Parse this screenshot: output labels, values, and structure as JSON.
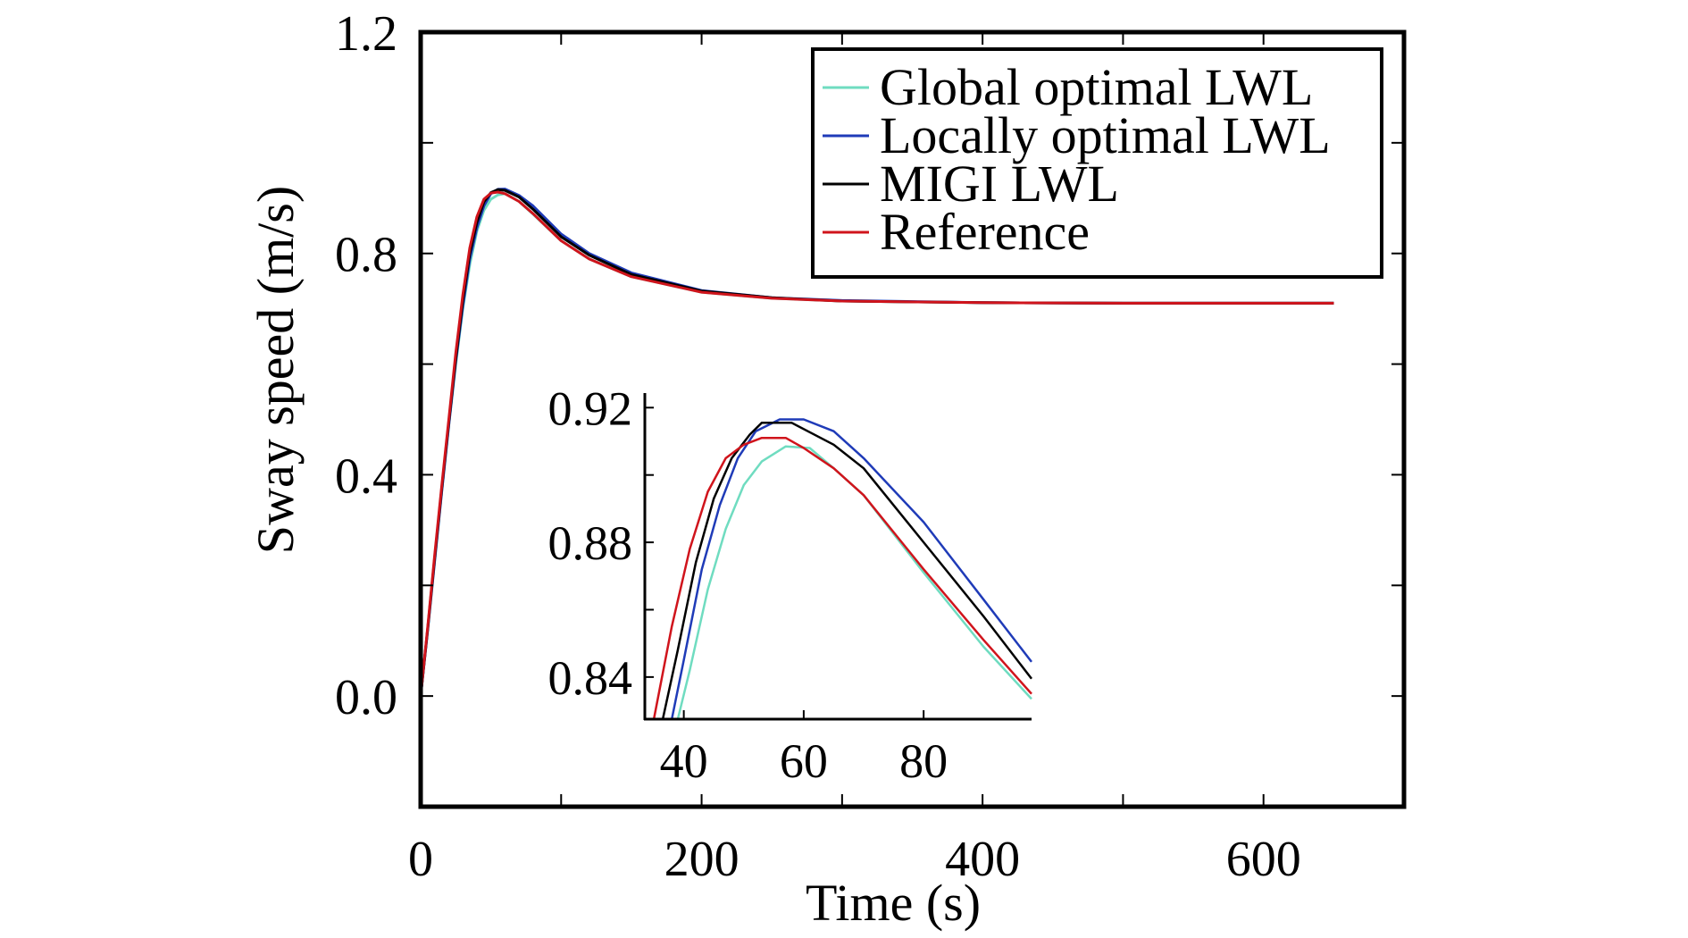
{
  "chart_data": {
    "type": "line",
    "title": "",
    "xlabel": "Time (s)",
    "ylabel": "Sway speed (m/s)",
    "xlim": [
      0,
      700
    ],
    "ylim": [
      -0.2,
      1.2
    ],
    "xticks": [
      0,
      100,
      200,
      300,
      400,
      500,
      600,
      700
    ],
    "xtick_labels": [
      "0",
      "",
      "200",
      "",
      "400",
      "",
      "600",
      ""
    ],
    "yticks": [
      -0.2,
      0.0,
      0.2,
      0.4,
      0.6,
      0.8,
      1.0,
      1.2
    ],
    "ytick_labels": [
      "",
      "0.0",
      "",
      "0.4",
      "",
      "0.8",
      "",
      "1.2"
    ],
    "grid": false,
    "legend_position": "top-right",
    "series": [
      {
        "name": "Global optimal LWL",
        "color": "#6fdcc0",
        "points": [
          [
            0,
            0
          ],
          [
            5,
            0.12
          ],
          [
            10,
            0.245
          ],
          [
            15,
            0.37
          ],
          [
            20,
            0.49
          ],
          [
            25,
            0.6
          ],
          [
            30,
            0.7
          ],
          [
            35,
            0.78
          ],
          [
            40,
            0.84
          ],
          [
            45,
            0.878
          ],
          [
            50,
            0.898
          ],
          [
            55,
            0.906
          ],
          [
            60,
            0.908
          ],
          [
            70,
            0.894
          ],
          [
            80,
            0.871
          ],
          [
            100,
            0.823
          ],
          [
            120,
            0.79
          ],
          [
            150,
            0.758
          ],
          [
            200,
            0.73
          ],
          [
            250,
            0.719
          ],
          [
            300,
            0.714
          ],
          [
            400,
            0.711
          ],
          [
            500,
            0.71
          ],
          [
            650,
            0.71
          ]
        ]
      },
      {
        "name": "Locally optimal LWL",
        "color": "#1f3bb8",
        "points": [
          [
            0,
            0
          ],
          [
            5,
            0.12
          ],
          [
            10,
            0.245
          ],
          [
            15,
            0.37
          ],
          [
            20,
            0.49
          ],
          [
            25,
            0.605
          ],
          [
            30,
            0.705
          ],
          [
            35,
            0.79
          ],
          [
            40,
            0.846
          ],
          [
            45,
            0.886
          ],
          [
            50,
            0.908
          ],
          [
            55,
            0.916
          ],
          [
            60,
            0.9165
          ],
          [
            70,
            0.905
          ],
          [
            80,
            0.886
          ],
          [
            100,
            0.835
          ],
          [
            120,
            0.8
          ],
          [
            150,
            0.765
          ],
          [
            200,
            0.733
          ],
          [
            250,
            0.72
          ],
          [
            300,
            0.715
          ],
          [
            400,
            0.711
          ],
          [
            500,
            0.71
          ],
          [
            650,
            0.71
          ]
        ]
      },
      {
        "name": "MIGI LWL",
        "color": "#000000",
        "points": [
          [
            0,
            0
          ],
          [
            5,
            0.122
          ],
          [
            10,
            0.25
          ],
          [
            15,
            0.375
          ],
          [
            20,
            0.495
          ],
          [
            25,
            0.61
          ],
          [
            30,
            0.715
          ],
          [
            35,
            0.8
          ],
          [
            40,
            0.856
          ],
          [
            45,
            0.893
          ],
          [
            50,
            0.91
          ],
          [
            55,
            0.9155
          ],
          [
            60,
            0.914
          ],
          [
            70,
            0.902
          ],
          [
            80,
            0.88
          ],
          [
            100,
            0.83
          ],
          [
            120,
            0.797
          ],
          [
            150,
            0.762
          ],
          [
            200,
            0.732
          ],
          [
            250,
            0.72
          ],
          [
            300,
            0.714
          ],
          [
            400,
            0.711
          ],
          [
            500,
            0.71
          ],
          [
            650,
            0.71
          ]
        ]
      },
      {
        "name": "Reference",
        "color": "#d0141c",
        "points": [
          [
            0,
            0
          ],
          [
            5,
            0.125
          ],
          [
            10,
            0.255
          ],
          [
            15,
            0.38
          ],
          [
            20,
            0.5
          ],
          [
            25,
            0.62
          ],
          [
            30,
            0.725
          ],
          [
            35,
            0.81
          ],
          [
            40,
            0.866
          ],
          [
            45,
            0.898
          ],
          [
            50,
            0.909
          ],
          [
            55,
            0.911
          ],
          [
            60,
            0.908
          ],
          [
            70,
            0.894
          ],
          [
            80,
            0.872
          ],
          [
            100,
            0.823
          ],
          [
            120,
            0.79
          ],
          [
            150,
            0.758
          ],
          [
            200,
            0.73
          ],
          [
            250,
            0.719
          ],
          [
            300,
            0.714
          ],
          [
            400,
            0.711
          ],
          [
            500,
            0.71
          ],
          [
            650,
            0.71
          ]
        ]
      }
    ],
    "inset": {
      "xlim": [
        33.5,
        98
      ],
      "ylim": [
        0.8275,
        0.923
      ],
      "xticks": [
        40,
        60,
        80
      ],
      "xtick_labels": [
        "40",
        "60",
        "80"
      ],
      "yticks": [
        0.84,
        0.86,
        0.88,
        0.9,
        0.92
      ],
      "ytick_labels": [
        "0.84",
        "",
        "0.88",
        "",
        "0.92"
      ],
      "series": [
        {
          "name": "Global optimal LWL",
          "color": "#6fdcc0",
          "points": [
            [
              39,
              0.8275
            ],
            [
              41,
              0.842
            ],
            [
              44,
              0.866
            ],
            [
              47,
              0.884
            ],
            [
              50,
              0.897
            ],
            [
              53,
              0.904
            ],
            [
              57,
              0.9085
            ],
            [
              61,
              0.908
            ],
            [
              65,
              0.902
            ],
            [
              70,
              0.894
            ],
            [
              80,
              0.871
            ],
            [
              90,
              0.849
            ],
            [
              98,
              0.8335
            ]
          ]
        },
        {
          "name": "Locally optimal LWL",
          "color": "#1f3bb8",
          "points": [
            [
              38,
              0.8275
            ],
            [
              40,
              0.845
            ],
            [
              43,
              0.872
            ],
            [
              46,
              0.891
            ],
            [
              49,
              0.905
            ],
            [
              52,
              0.913
            ],
            [
              56,
              0.9165
            ],
            [
              60,
              0.9165
            ],
            [
              65,
              0.913
            ],
            [
              70,
              0.905
            ],
            [
              80,
              0.886
            ],
            [
              90,
              0.863
            ],
            [
              98,
              0.8445
            ]
          ]
        },
        {
          "name": "MIGI LWL",
          "color": "#000000",
          "points": [
            [
              36.5,
              0.8275
            ],
            [
              39,
              0.848
            ],
            [
              42,
              0.874
            ],
            [
              45,
              0.893
            ],
            [
              48,
              0.905
            ],
            [
              51,
              0.912
            ],
            [
              53,
              0.9155
            ],
            [
              58,
              0.9155
            ],
            [
              65,
              0.909
            ],
            [
              70,
              0.902
            ],
            [
              80,
              0.88
            ],
            [
              90,
              0.858
            ],
            [
              98,
              0.8395
            ]
          ]
        },
        {
          "name": "Reference",
          "color": "#d0141c",
          "points": [
            [
              35,
              0.8275
            ],
            [
              38,
              0.855
            ],
            [
              41,
              0.878
            ],
            [
              44,
              0.895
            ],
            [
              47,
              0.905
            ],
            [
              50,
              0.909
            ],
            [
              53,
              0.911
            ],
            [
              57,
              0.911
            ],
            [
              60,
              0.908
            ],
            [
              65,
              0.902
            ],
            [
              70,
              0.894
            ],
            [
              80,
              0.872
            ],
            [
              90,
              0.851
            ],
            [
              98,
              0.835
            ]
          ]
        }
      ]
    }
  }
}
